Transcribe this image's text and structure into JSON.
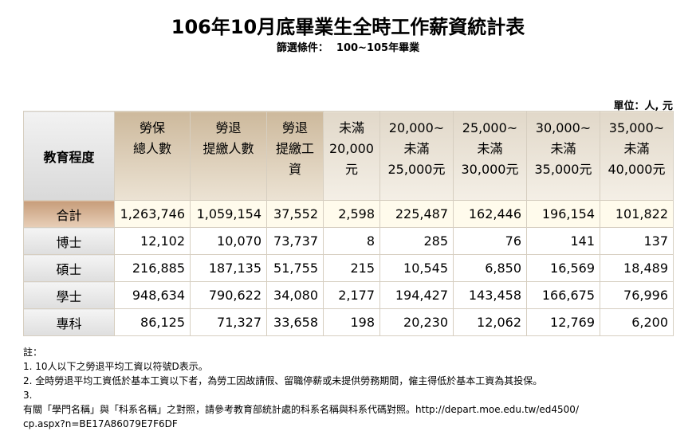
{
  "title": "106年10月底畢業生全時工作薪資統計表",
  "filter": {
    "label": "篩選條件：",
    "value": "100~105年畢業"
  },
  "unit": "單位：人, 元",
  "table": {
    "row_header": "教育程度",
    "columns": [
      [
        "勞保",
        "總人數"
      ],
      [
        "勞退",
        "提繳人數"
      ],
      [
        "勞退",
        "提繳工",
        "資"
      ],
      [
        "未滿",
        "20,000",
        "元"
      ],
      [
        "20,000~",
        "未滿",
        "25,000元"
      ],
      [
        "25,000~",
        "未滿",
        "30,000元"
      ],
      [
        "30,000~",
        "未滿",
        "35,000元"
      ],
      [
        "35,000~",
        "未滿",
        "40,000元"
      ]
    ],
    "rows": [
      {
        "label": "合計",
        "values": [
          "1,263,746",
          "1,059,154",
          "37,552",
          "2,598",
          "225,487",
          "162,446",
          "196,154",
          "101,822"
        ]
      },
      {
        "label": "博士",
        "values": [
          "12,102",
          "10,070",
          "73,737",
          "8",
          "285",
          "76",
          "141",
          "137"
        ]
      },
      {
        "label": "碩士",
        "values": [
          "216,885",
          "187,135",
          "51,755",
          "215",
          "10,545",
          "6,850",
          "16,569",
          "18,489"
        ]
      },
      {
        "label": "學士",
        "values": [
          "948,634",
          "790,622",
          "34,080",
          "2,177",
          "194,427",
          "143,458",
          "166,675",
          "76,996"
        ]
      },
      {
        "label": "專科",
        "values": [
          "86,125",
          "71,327",
          "33,658",
          "198",
          "20,230",
          "12,062",
          "12,769",
          "6,200"
        ]
      }
    ]
  },
  "notes": {
    "heading": "註：",
    "lines": [
      "1. 10人以下之勞退平均工資以符號D表示。",
      "2. 全時勞退平均工資低於基本工資以下者，為勞工因故請假、留職停薪或未提供勞務期間，僱主得低於基本工資為其投保。",
      "3.",
      "有關「學門名稱」與「科系名稱」之對照，請參考教育部統計處的科系名稱與科系代碼對照。http://depart.moe.edu.tw/ed4500/",
      "cp.aspx?n=BE17A86079E7F6DF"
    ]
  }
}
